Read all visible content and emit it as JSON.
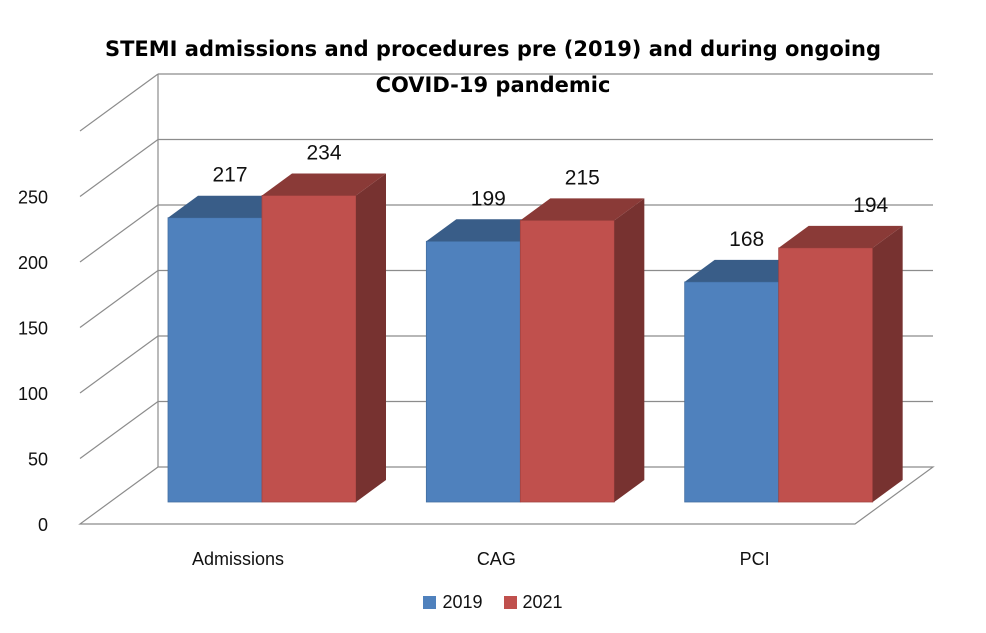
{
  "chart_data": {
    "type": "bar",
    "title_line1": "STEMI admissions and procedures pre (2019) and during ongoing",
    "title_line2": "COVID-19 pandemic",
    "categories": [
      "Admissions",
      "CAG",
      "PCI"
    ],
    "series": [
      {
        "name": "2019",
        "values": [
          217,
          199,
          168
        ],
        "color": "#4F81BD"
      },
      {
        "name": "2021",
        "values": [
          234,
          215,
          194
        ],
        "color": "#C0504D"
      }
    ],
    "y_ticks": [
      0,
      50,
      100,
      150,
      200,
      250
    ],
    "ylim": [
      0,
      300
    ],
    "grid": true,
    "legend": "bottom",
    "style": "3d-clustered-column"
  }
}
